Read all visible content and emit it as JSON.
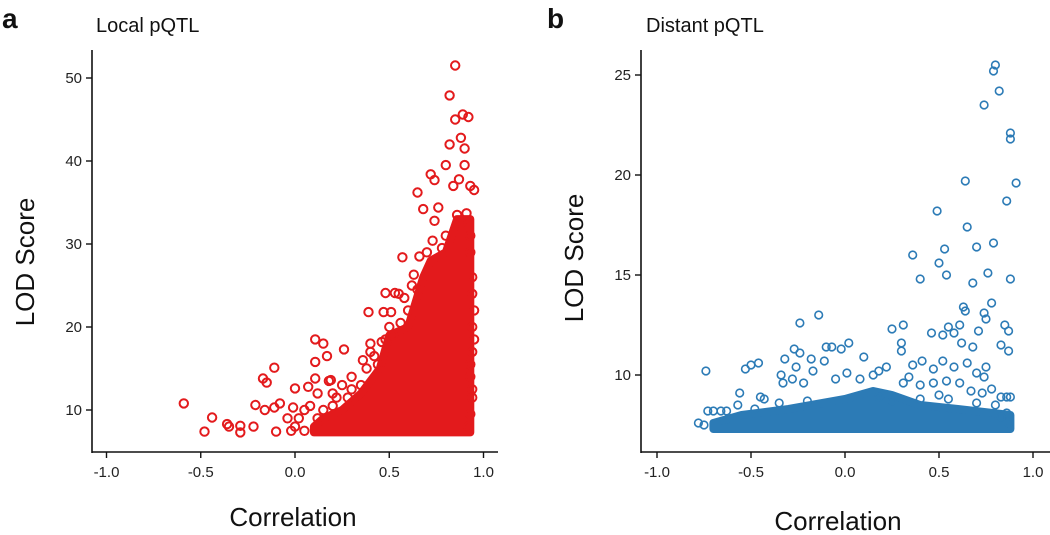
{
  "chart_data": [
    {
      "type": "scatter",
      "panel_letter": "a",
      "title": "Local pQTL",
      "xlabel": "Correlation",
      "ylabel": "LOD Score",
      "xlim": [
        -1.0,
        1.0
      ],
      "ylim": [
        5.5,
        53
      ],
      "xticks": [
        -1.0,
        -0.5,
        0.0,
        0.5,
        1.0
      ],
      "xtick_labels": [
        "-1.0",
        "-0.5",
        "0.0",
        "0.5",
        "1.0"
      ],
      "yticks": [
        10,
        20,
        30,
        40,
        50
      ],
      "ytick_labels": [
        "10",
        "20",
        "30",
        "40",
        "50"
      ],
      "grid": false,
      "color": "#e31a1c",
      "dense_region": [
        [
          0.1,
          7.3
        ],
        [
          0.93,
          7.3
        ],
        [
          0.93,
          33
        ],
        [
          0.86,
          33
        ],
        [
          0.8,
          29
        ],
        [
          0.72,
          28
        ],
        [
          0.68,
          26
        ],
        [
          0.6,
          20
        ],
        [
          0.5,
          19
        ],
        [
          0.45,
          15
        ],
        [
          0.35,
          12
        ],
        [
          0.25,
          10
        ],
        [
          0.15,
          9
        ],
        [
          0.1,
          8
        ]
      ],
      "points": [
        [
          0.85,
          51.5
        ],
        [
          0.82,
          47.9
        ],
        [
          0.85,
          45
        ],
        [
          0.89,
          45.6
        ],
        [
          0.92,
          45.3
        ],
        [
          0.88,
          42.8
        ],
        [
          0.82,
          42
        ],
        [
          0.9,
          41.5
        ],
        [
          0.8,
          39.5
        ],
        [
          0.9,
          39.5
        ],
        [
          0.72,
          38.4
        ],
        [
          0.74,
          37.7
        ],
        [
          0.87,
          37.8
        ],
        [
          0.93,
          37
        ],
        [
          0.95,
          36.5
        ],
        [
          0.65,
          36.2
        ],
        [
          0.84,
          37
        ],
        [
          0.68,
          34.2
        ],
        [
          0.76,
          34.4
        ],
        [
          0.74,
          32.8
        ],
        [
          0.73,
          30.4
        ],
        [
          0.57,
          28.4
        ],
        [
          0.63,
          26.3
        ],
        [
          0.48,
          24.1
        ],
        [
          0.53,
          24.1
        ],
        [
          0.39,
          21.8
        ],
        [
          0.47,
          21.8
        ],
        [
          0.51,
          21.8
        ],
        [
          0.4,
          18
        ],
        [
          0.46,
          18.2
        ],
        [
          0.107,
          18.5
        ],
        [
          0.15,
          18
        ],
        [
          0.26,
          17.3
        ],
        [
          0.17,
          16.5
        ],
        [
          0.107,
          15.8
        ],
        [
          -0.11,
          15.1
        ],
        [
          0.36,
          16
        ],
        [
          -0.17,
          13.8
        ],
        [
          -0.15,
          13.3
        ],
        [
          0.107,
          13.8
        ],
        [
          0.19,
          13.6
        ],
        [
          0,
          12.6
        ],
        [
          0.07,
          12.8
        ],
        [
          -0.59,
          10.8
        ],
        [
          -0.44,
          9.1
        ],
        [
          -0.48,
          7.4
        ],
        [
          -0.36,
          8.3
        ],
        [
          -0.35,
          8
        ],
        [
          -0.29,
          8.1
        ],
        [
          -0.29,
          7.3
        ],
        [
          -0.22,
          8
        ],
        [
          -0.21,
          10.6
        ],
        [
          -0.11,
          10.3
        ],
        [
          -0.08,
          10.8
        ],
        [
          -0.16,
          10
        ],
        [
          -0.1,
          7.4
        ],
        [
          -0.04,
          9
        ],
        [
          -0.01,
          10.3
        ],
        [
          0.93,
          31
        ],
        [
          0.93,
          29
        ],
        [
          0.94,
          26
        ],
        [
          0.94,
          24
        ],
        [
          0.95,
          22
        ],
        [
          0.94,
          20
        ],
        [
          0.95,
          18.5
        ],
        [
          0.94,
          17
        ],
        [
          0.93,
          15.5
        ],
        [
          0.93,
          14
        ],
        [
          0.94,
          12.5
        ],
        [
          0.94,
          11.5
        ],
        [
          0.93,
          9.5
        ],
        [
          0.92,
          8
        ],
        [
          0.86,
          33.5
        ],
        [
          0.88,
          32.5
        ],
        [
          0.91,
          33.7
        ],
        [
          0.8,
          31
        ],
        [
          0.78,
          29.5
        ],
        [
          0.7,
          29
        ],
        [
          0.66,
          28.5
        ],
        [
          0.62,
          25
        ],
        [
          0.65,
          24.5
        ],
        [
          0.58,
          23.5
        ],
        [
          0.55,
          24
        ],
        [
          0.5,
          20
        ],
        [
          0.48,
          18.5
        ],
        [
          0.42,
          16.5
        ],
        [
          0.38,
          15
        ],
        [
          0.35,
          13
        ],
        [
          0.3,
          12.5
        ],
        [
          0.28,
          11.5
        ],
        [
          0.22,
          11.5
        ],
        [
          0.2,
          10.5
        ],
        [
          0.15,
          10
        ],
        [
          0.12,
          9
        ],
        [
          0.08,
          10.5
        ],
        [
          0.05,
          10
        ],
        [
          0.02,
          9
        ],
        [
          0,
          8
        ],
        [
          -0.02,
          7.5
        ],
        [
          0.05,
          7.5
        ],
        [
          0.2,
          12
        ],
        [
          0.25,
          13
        ],
        [
          0.18,
          13.5
        ],
        [
          0.12,
          12
        ],
        [
          0.3,
          14
        ],
        [
          0.4,
          17
        ],
        [
          0.44,
          15.5
        ],
        [
          0.52,
          19
        ],
        [
          0.56,
          20.5
        ],
        [
          0.6,
          22
        ]
      ]
    },
    {
      "type": "scatter",
      "panel_letter": "b",
      "title": "Distant pQTL",
      "xlabel": "Correlation",
      "ylabel": "LOD Score",
      "xlim": [
        -1.05,
        1.05
      ],
      "ylim": [
        6.1,
        26.3
      ],
      "xticks": [
        -1.0,
        -0.5,
        0.0,
        0.5,
        1.0
      ],
      "xtick_labels": [
        "-1.0",
        "-0.5",
        "0.0",
        "0.5",
        "1.0"
      ],
      "yticks": [
        10,
        15,
        20,
        25
      ],
      "ytick_labels": [
        "10",
        "15",
        "20",
        "25"
      ],
      "grid": false,
      "color": "#2c7bb6",
      "dense_region": [
        [
          -0.7,
          7.3
        ],
        [
          0.88,
          7.3
        ],
        [
          0.88,
          8.0
        ],
        [
          0.6,
          8.3
        ],
        [
          0.4,
          8.5
        ],
        [
          0.25,
          9.0
        ],
        [
          0.15,
          9.2
        ],
        [
          0,
          8.8
        ],
        [
          -0.3,
          8.3
        ],
        [
          -0.55,
          8.0
        ],
        [
          -0.7,
          7.6
        ]
      ],
      "points": [
        [
          0.8,
          25.5
        ],
        [
          0.79,
          25.2
        ],
        [
          0.82,
          24.2
        ],
        [
          0.74,
          23.5
        ],
        [
          0.88,
          22.1
        ],
        [
          0.88,
          21.8
        ],
        [
          0.64,
          19.7
        ],
        [
          0.91,
          19.6
        ],
        [
          0.86,
          18.7
        ],
        [
          0.49,
          18.2
        ],
        [
          0.65,
          17.4
        ],
        [
          0.79,
          16.6
        ],
        [
          0.7,
          16.4
        ],
        [
          0.53,
          16.3
        ],
        [
          0.36,
          16
        ],
        [
          0.5,
          15.6
        ],
        [
          0.54,
          15
        ],
        [
          0.4,
          14.8
        ],
        [
          0.88,
          14.8
        ],
        [
          0.68,
          14.6
        ],
        [
          0.76,
          15.1
        ],
        [
          0.78,
          13.6
        ],
        [
          0.63,
          13.4
        ],
        [
          0.64,
          13.2
        ],
        [
          0.74,
          13.1
        ],
        [
          0.75,
          12.8
        ],
        [
          -0.14,
          13
        ],
        [
          -0.24,
          12.6
        ],
        [
          0.31,
          12.5
        ],
        [
          0.25,
          12.3
        ],
        [
          0.46,
          12.1
        ],
        [
          0.55,
          12.4
        ],
        [
          0.61,
          12.5
        ],
        [
          0.85,
          12.5
        ],
        [
          0.87,
          12.2
        ],
        [
          0.71,
          12.2
        ],
        [
          0.52,
          12
        ],
        [
          0.58,
          12.1
        ],
        [
          0.62,
          11.6
        ],
        [
          0.68,
          11.4
        ],
        [
          0.83,
          11.5
        ],
        [
          0.87,
          11.2
        ],
        [
          0.3,
          11.6
        ],
        [
          0.3,
          11.2
        ],
        [
          0.02,
          11.6
        ],
        [
          -0.02,
          11.3
        ],
        [
          -0.1,
          11.4
        ],
        [
          -0.07,
          11.4
        ],
        [
          -0.27,
          11.3
        ],
        [
          -0.24,
          11.1
        ],
        [
          -0.18,
          10.8
        ],
        [
          -0.32,
          10.8
        ],
        [
          -0.46,
          10.6
        ],
        [
          -0.5,
          10.5
        ],
        [
          -0.53,
          10.3
        ],
        [
          -0.74,
          10.2
        ],
        [
          -0.11,
          10.7
        ],
        [
          0.1,
          10.9
        ],
        [
          -0.17,
          10.2
        ],
        [
          -0.26,
          10.4
        ],
        [
          -0.34,
          10
        ],
        [
          -0.22,
          9.6
        ],
        [
          -0.28,
          9.8
        ],
        [
          -0.33,
          9.6
        ],
        [
          -0.56,
          9.1
        ],
        [
          -0.43,
          8.8
        ],
        [
          0.22,
          10.4
        ],
        [
          0.18,
          10.2
        ],
        [
          0.36,
          10.5
        ],
        [
          0.41,
          10.7
        ],
        [
          0.47,
          10.3
        ],
        [
          0.52,
          10.7
        ],
        [
          0.58,
          10.4
        ],
        [
          0.65,
          10.6
        ],
        [
          0.75,
          10.4
        ],
        [
          0.7,
          10.1
        ],
        [
          0.74,
          9.9
        ],
        [
          0.54,
          9.7
        ],
        [
          0.61,
          9.6
        ],
        [
          0.4,
          9.5
        ],
        [
          0.31,
          9.6
        ],
        [
          0.34,
          9.9
        ],
        [
          0.86,
          8.9
        ],
        [
          0.88,
          8.9
        ],
        [
          0.83,
          8.9
        ],
        [
          0.78,
          9.3
        ],
        [
          0.47,
          9.6
        ],
        [
          0.08,
          9.8
        ],
        [
          0.01,
          10.1
        ],
        [
          -0.05,
          9.8
        ],
        [
          0.15,
          10
        ],
        [
          -0.66,
          8.2
        ],
        [
          -0.7,
          8.2
        ],
        [
          -0.73,
          8.2
        ],
        [
          -0.78,
          7.6
        ],
        [
          -0.75,
          7.5
        ],
        [
          -0.63,
          8.2
        ],
        [
          -0.48,
          8.3
        ],
        [
          -0.57,
          8.5
        ],
        [
          -0.45,
          8.9
        ],
        [
          0.18,
          8.9
        ],
        [
          0.25,
          8.7
        ],
        [
          0.67,
          9.2
        ],
        [
          0.73,
          9.1
        ],
        [
          0.83,
          7.9
        ],
        [
          0.87,
          7.6
        ],
        [
          0.86,
          8.1
        ],
        [
          0.4,
          8.8
        ],
        [
          0.5,
          9
        ],
        [
          0.55,
          8.8
        ],
        [
          -0.2,
          8.7
        ],
        [
          -0.35,
          8.6
        ],
        [
          0.7,
          8.6
        ],
        [
          0.8,
          8.5
        ]
      ]
    }
  ]
}
